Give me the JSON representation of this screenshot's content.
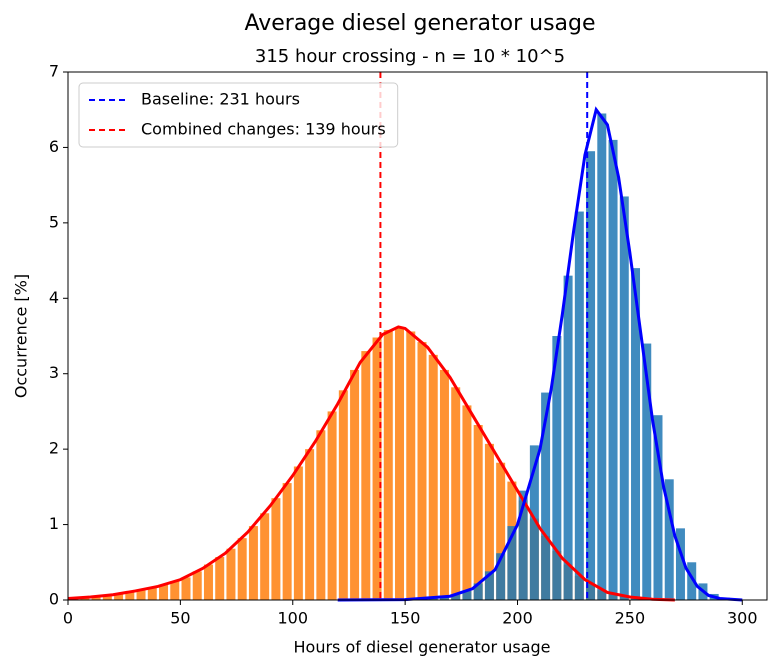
{
  "chart_data": {
    "type": "histogram",
    "title": "Average diesel generator usage",
    "subtitle": "315 hour crossing - n = 10 * 10^5",
    "x_label": "Hours of diesel generator usage",
    "y_label": "Occurrence [%]",
    "xlim": [
      0,
      311
    ],
    "ylim": [
      0,
      7
    ],
    "xticks": [
      0,
      50,
      100,
      150,
      200,
      250,
      300
    ],
    "yticks": [
      0,
      1,
      2,
      3,
      4,
      5,
      6,
      7
    ],
    "legend": "upper left",
    "histograms": [
      {
        "color": "#ff7f0e",
        "bins": [
          0,
          5,
          10,
          15,
          20,
          25,
          30,
          35,
          40,
          45,
          50,
          55,
          60,
          65,
          70,
          75,
          80,
          85,
          90,
          95,
          100,
          105,
          110,
          115,
          120,
          125,
          130,
          135,
          140,
          145,
          150,
          155,
          160,
          165,
          170,
          175,
          180,
          185,
          190,
          195,
          200,
          205,
          210,
          215,
          220,
          225,
          230,
          235,
          240,
          245,
          250,
          255,
          260,
          265,
          270
        ],
        "values": [
          0.02,
          0.03,
          0.04,
          0.06,
          0.08,
          0.11,
          0.13,
          0.16,
          0.2,
          0.25,
          0.3,
          0.38,
          0.47,
          0.57,
          0.68,
          0.82,
          0.98,
          1.15,
          1.35,
          1.55,
          1.77,
          2.0,
          2.25,
          2.5,
          2.78,
          3.05,
          3.3,
          3.48,
          3.58,
          3.62,
          3.56,
          3.42,
          3.25,
          3.05,
          2.82,
          2.58,
          2.32,
          2.07,
          1.82,
          1.57,
          1.32,
          1.08,
          0.85,
          0.65,
          0.47,
          0.32,
          0.21,
          0.13,
          0.08,
          0.05,
          0.03,
          0.02,
          0.01,
          0.005
        ]
      },
      {
        "color": "#1f77b4",
        "bins": [
          150,
          155,
          160,
          165,
          170,
          175,
          180,
          185,
          190,
          195,
          200,
          205,
          210,
          215,
          220,
          225,
          230,
          235,
          240,
          245,
          250,
          255,
          260,
          265,
          270,
          275,
          280,
          285,
          290,
          295
        ],
        "values": [
          0.005,
          0.01,
          0.02,
          0.04,
          0.07,
          0.12,
          0.22,
          0.38,
          0.62,
          0.98,
          1.45,
          2.05,
          2.75,
          3.5,
          4.3,
          5.15,
          5.95,
          6.45,
          6.1,
          5.35,
          4.4,
          3.4,
          2.45,
          1.6,
          0.95,
          0.5,
          0.22,
          0.08,
          0.03
        ]
      }
    ],
    "curves": [
      {
        "color": "#ff0000",
        "x": [
          0,
          10,
          20,
          30,
          40,
          50,
          60,
          70,
          80,
          90,
          100,
          110,
          120,
          130,
          140,
          147,
          150,
          160,
          170,
          180,
          190,
          200,
          210,
          220,
          230,
          240,
          250,
          260,
          270
        ],
        "values": [
          0.02,
          0.04,
          0.07,
          0.12,
          0.18,
          0.27,
          0.42,
          0.62,
          0.9,
          1.25,
          1.65,
          2.1,
          2.6,
          3.15,
          3.52,
          3.62,
          3.6,
          3.35,
          2.95,
          2.45,
          1.95,
          1.45,
          0.95,
          0.55,
          0.27,
          0.1,
          0.04,
          0.01,
          0
        ]
      },
      {
        "color": "#0000ff",
        "x": [
          120,
          150,
          170,
          180,
          190,
          200,
          210,
          215,
          220,
          225,
          230,
          235,
          240,
          245,
          250,
          255,
          260,
          265,
          270,
          275,
          280,
          285,
          290,
          300
        ],
        "values": [
          0,
          0.005,
          0.05,
          0.15,
          0.4,
          1.0,
          2.0,
          2.8,
          3.8,
          4.9,
          5.9,
          6.5,
          6.3,
          5.6,
          4.6,
          3.5,
          2.4,
          1.5,
          0.85,
          0.42,
          0.18,
          0.06,
          0.02,
          0
        ]
      }
    ],
    "vlines": [
      {
        "name": "Baseline: 231 hours",
        "x": 231,
        "color": "#0000ff"
      },
      {
        "name": "Combined changes: 139 hours",
        "x": 139,
        "color": "#ff0000"
      }
    ]
  }
}
